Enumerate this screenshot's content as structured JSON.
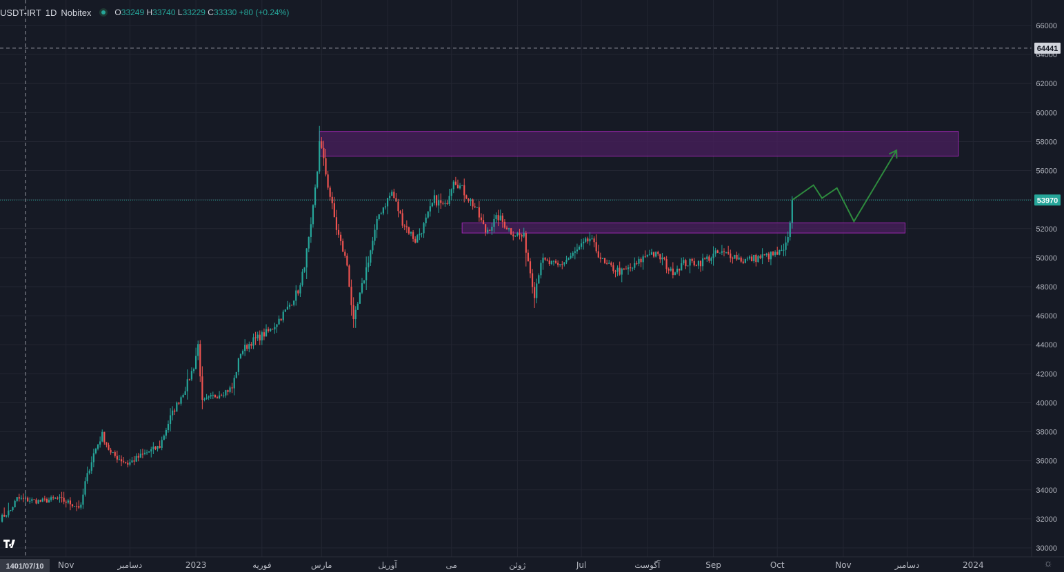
{
  "legend": {
    "symbol": "USDT-IRT",
    "interval": "1D",
    "exchange": "Nobitex",
    "open_label": "O",
    "open": "33249",
    "high_label": "H",
    "high": "33740",
    "low_label": "L",
    "low": "33229",
    "close_label": "C",
    "close": "33330",
    "change": "+80 (+0.24%)"
  },
  "colors": {
    "background": "#161a25",
    "grid": "#232632",
    "up": "#26a69a",
    "down": "#ef5350",
    "zone_fill": "#4a1f5e",
    "zone_border": "#9c27b0",
    "projection": "#2e8b3e",
    "axis_text": "#b2b5be"
  },
  "icons": {
    "logo": "tradingview-logo-icon",
    "settings": "gear-icon"
  },
  "crosshair": {
    "date_label": "1401/07/10",
    "price_label": "64441",
    "price": 64441
  },
  "last_price": {
    "label": "53970",
    "value": 53970
  },
  "chart_data": {
    "type": "candlestick",
    "y_axis": {
      "range": [
        29500,
        67000
      ],
      "ticks": [
        30000,
        32000,
        34000,
        36000,
        38000,
        40000,
        42000,
        44000,
        46000,
        48000,
        50000,
        52000,
        54000,
        56000,
        58000,
        60000,
        62000,
        64000,
        66000
      ],
      "tick_labels": [
        "30000",
        "32000",
        "34000",
        "36000",
        "38000",
        "40000",
        "42000",
        "44000",
        "46000",
        "48000",
        "50000",
        "52000",
        "54000",
        "56000",
        "58000",
        "60000",
        "62000",
        "64000",
        "66000"
      ]
    },
    "x_axis": {
      "range": [
        "2022-10-01",
        "2024-01-20"
      ],
      "ticks": [
        {
          "date": "2022-11-01",
          "label": "Nov"
        },
        {
          "date": "2022-12-01",
          "label": "دسامبر"
        },
        {
          "date": "2023-01-01",
          "label": "2023"
        },
        {
          "date": "2023-02-01",
          "label": "فوریه"
        },
        {
          "date": "2023-03-01",
          "label": "مارس"
        },
        {
          "date": "2023-04-01",
          "label": "آوریل"
        },
        {
          "date": "2023-05-01",
          "label": "می"
        },
        {
          "date": "2023-06-01",
          "label": "ژوئن"
        },
        {
          "date": "2023-07-01",
          "label": "Jul"
        },
        {
          "date": "2023-08-01",
          "label": "آگوست"
        },
        {
          "date": "2023-09-01",
          "label": "Sep"
        },
        {
          "date": "2023-10-01",
          "label": "Oct"
        },
        {
          "date": "2023-11-01",
          "label": "Nov"
        },
        {
          "date": "2023-12-01",
          "label": "دسامبر"
        },
        {
          "date": "2024-01-01",
          "label": "2024"
        }
      ]
    },
    "price_path": [
      [
        "2022-10-01",
        32000
      ],
      [
        "2022-10-06",
        32600
      ],
      [
        "2022-10-09",
        33400
      ],
      [
        "2022-10-20",
        33200
      ],
      [
        "2022-10-28",
        33400
      ],
      [
        "2022-11-08",
        32800
      ],
      [
        "2022-11-10",
        34500
      ],
      [
        "2022-11-14",
        36500
      ],
      [
        "2022-11-18",
        37800
      ],
      [
        "2022-11-22",
        36500
      ],
      [
        "2022-11-30",
        35800
      ],
      [
        "2022-12-08",
        36500
      ],
      [
        "2022-12-15",
        37000
      ],
      [
        "2022-12-20",
        39000
      ],
      [
        "2022-12-27",
        41000
      ],
      [
        "2022-12-31",
        42500
      ],
      [
        "2023-01-02",
        44000
      ],
      [
        "2023-01-04",
        40000
      ],
      [
        "2023-01-10",
        40500
      ],
      [
        "2023-01-18",
        41000
      ],
      [
        "2023-01-22",
        43500
      ],
      [
        "2023-01-27",
        44200
      ],
      [
        "2023-02-05",
        45000
      ],
      [
        "2023-02-13",
        46500
      ],
      [
        "2023-02-19",
        48000
      ],
      [
        "2023-02-24",
        52000
      ],
      [
        "2023-02-27",
        56000
      ],
      [
        "2023-02-28",
        58200
      ],
      [
        "2023-03-04",
        55000
      ],
      [
        "2023-03-08",
        52000
      ],
      [
        "2023-03-13",
        49500
      ],
      [
        "2023-03-16",
        45500
      ],
      [
        "2023-03-20",
        48000
      ],
      [
        "2023-03-24",
        50500
      ],
      [
        "2023-03-28",
        53000
      ],
      [
        "2023-04-03",
        54500
      ],
      [
        "2023-04-08",
        52500
      ],
      [
        "2023-04-14",
        51200
      ],
      [
        "2023-04-18",
        52200
      ],
      [
        "2023-04-23",
        54000
      ],
      [
        "2023-04-28",
        53500
      ],
      [
        "2023-05-02",
        55500
      ],
      [
        "2023-05-07",
        54500
      ],
      [
        "2023-05-12",
        53500
      ],
      [
        "2023-05-17",
        51800
      ],
      [
        "2023-05-23",
        52800
      ],
      [
        "2023-05-29",
        51800
      ],
      [
        "2023-06-04",
        51400
      ],
      [
        "2023-06-06",
        49800
      ],
      [
        "2023-06-09",
        47500
      ],
      [
        "2023-06-12",
        49800
      ],
      [
        "2023-06-20",
        49400
      ],
      [
        "2023-06-27",
        50200
      ],
      [
        "2023-07-05",
        51300
      ],
      [
        "2023-07-12",
        49500
      ],
      [
        "2023-07-20",
        49000
      ],
      [
        "2023-07-26",
        49400
      ],
      [
        "2023-08-02",
        50400
      ],
      [
        "2023-08-08",
        49900
      ],
      [
        "2023-08-12",
        49000
      ],
      [
        "2023-08-18",
        49600
      ],
      [
        "2023-08-26",
        49700
      ],
      [
        "2023-09-03",
        50300
      ],
      [
        "2023-09-10",
        50200
      ],
      [
        "2023-09-15",
        49800
      ],
      [
        "2023-09-22",
        50000
      ],
      [
        "2023-09-30",
        50200
      ],
      [
        "2023-10-04",
        50400
      ],
      [
        "2023-10-06",
        51200
      ],
      [
        "2023-10-07",
        52600
      ],
      [
        "2023-10-08",
        53970
      ]
    ],
    "zones": [
      {
        "from": "2023-02-28",
        "to": "2023-12-25",
        "low": 57000,
        "high": 58700
      },
      {
        "from": "2023-05-06",
        "to": "2023-11-30",
        "low": 51700,
        "high": 52400
      }
    ],
    "projection": [
      [
        "2023-10-08",
        53970
      ],
      [
        "2023-10-18",
        55000
      ],
      [
        "2023-10-22",
        54100
      ],
      [
        "2023-10-29",
        54800
      ],
      [
        "2023-11-06",
        52500
      ],
      [
        "2023-11-26",
        57400
      ]
    ]
  }
}
